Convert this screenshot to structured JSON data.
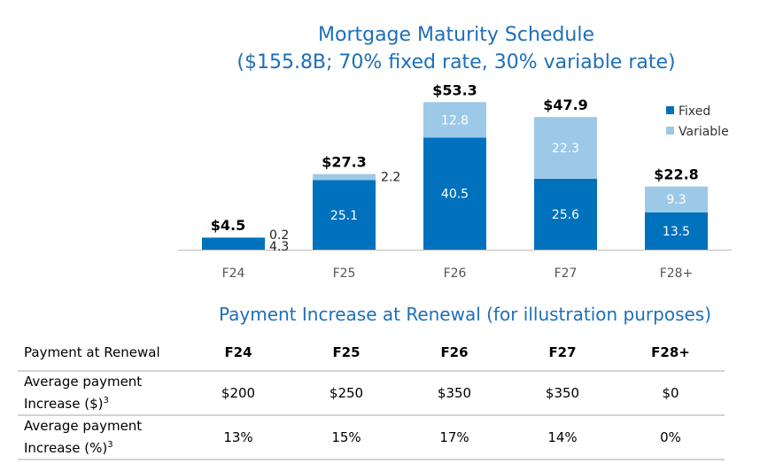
{
  "chart_data": {
    "type": "bar",
    "stacked": true,
    "title": "Mortgage Maturity Schedule",
    "subtitle": "($155.8B; 70% fixed rate, 30% variable rate)",
    "categories": [
      "F24",
      "F25",
      "F26",
      "F27",
      "F28+"
    ],
    "series": [
      {
        "name": "Fixed",
        "color": "#0071bc",
        "values": [
          4.3,
          25.1,
          40.5,
          25.6,
          13.5
        ],
        "labels": [
          "4.3",
          "25.1",
          "40.5",
          "25.6",
          "13.5"
        ]
      },
      {
        "name": "Variable",
        "color": "#9dc9e8",
        "values": [
          0.2,
          2.2,
          12.8,
          22.3,
          9.3
        ],
        "labels": [
          "0.2",
          "2.2",
          "12.8",
          "22.3",
          "9.3"
        ]
      }
    ],
    "totals": [
      "$4.5",
      "$27.3",
      "$53.3",
      "$47.9",
      "$22.8"
    ],
    "ylim": [
      0,
      55
    ],
    "legend_position": "top-right",
    "axis_color": "#bfbfbf"
  },
  "table": {
    "title": "Payment Increase at Renewal (for illustration purposes)",
    "header": {
      "label": "Payment at Renewal",
      "years": [
        "F24",
        "F25",
        "F26",
        "F27",
        "F28+"
      ]
    },
    "rows": [
      {
        "label_line1": "Average payment",
        "label_line2": "Increase ($)",
        "footnote": "3",
        "values": [
          "$200",
          "$250",
          "$350",
          "$350",
          "$0"
        ]
      },
      {
        "label_line1": "Average payment",
        "label_line2": "Increase (%)",
        "footnote": "3",
        "values": [
          "13%",
          "15%",
          "17%",
          "14%",
          "0%"
        ]
      }
    ]
  }
}
